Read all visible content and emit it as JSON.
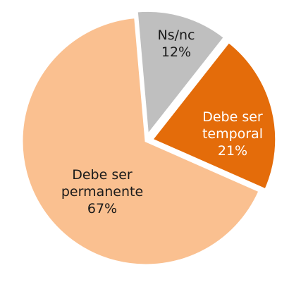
{
  "chart_data": {
    "type": "pie",
    "categories": [
      "Ns/nc",
      "Debe ser temporal",
      "Debe ser permanente"
    ],
    "values": [
      12,
      21,
      67
    ],
    "value_labels": [
      "12%",
      "21%",
      "67%"
    ],
    "colors": [
      "#bfbfbf",
      "#e46c0a",
      "#fac090"
    ],
    "label_colors": [
      "#1a1a1a",
      "#ffffff",
      "#1a1a1a"
    ]
  }
}
